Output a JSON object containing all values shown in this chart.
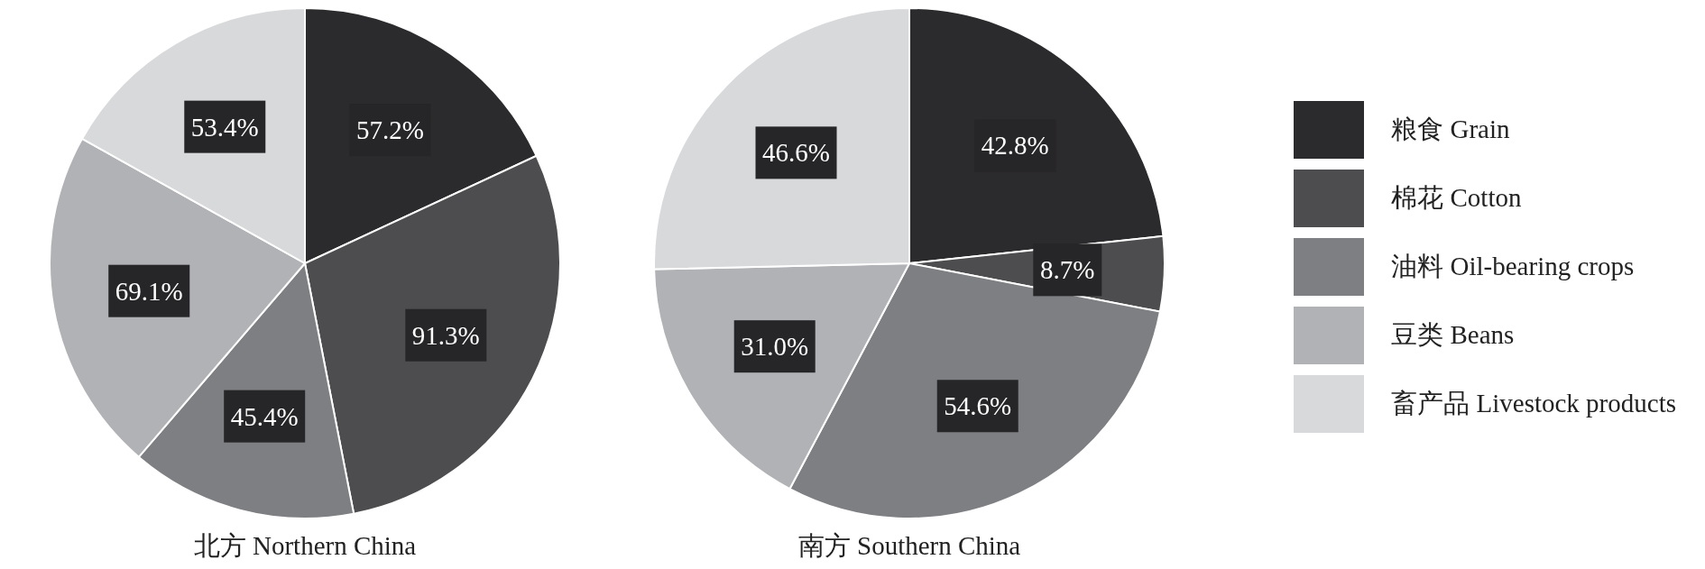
{
  "chart_data": [
    {
      "type": "pie",
      "title": "北方 Northern China",
      "categories": [
        null,
        null,
        null,
        null,
        null
      ],
      "values": [
        57.2,
        91.3,
        45.4,
        69.1,
        53.4
      ],
      "value_labels": [
        "57.2%",
        "91.3%",
        "45.4%",
        "69.1%",
        "53.4%"
      ],
      "colors": [
        "#2b2a2c",
        "#4d4d4f",
        "#7e7f82",
        "#b1b2b5",
        "#d8d9db"
      ]
    },
    {
      "type": "pie",
      "title": "南方 Southern China",
      "categories": [
        "粮食 Grain",
        "棉花 Cotton",
        "油料 Oil-bearing crops",
        "豆类 Beans",
        "畜产品 Livestock products"
      ],
      "values": [
        42.8,
        8.7,
        54.6,
        31.0,
        46.6
      ],
      "value_labels": [
        "42.8%",
        "8.7%",
        "54.6%",
        "31.0%",
        "46.6%"
      ],
      "colors": [
        "#2b2a2c",
        "#4d4d4f",
        "#7e7f82",
        "#b1b2b5",
        "#d8d9db"
      ],
      "legend": "right"
    }
  ]
}
